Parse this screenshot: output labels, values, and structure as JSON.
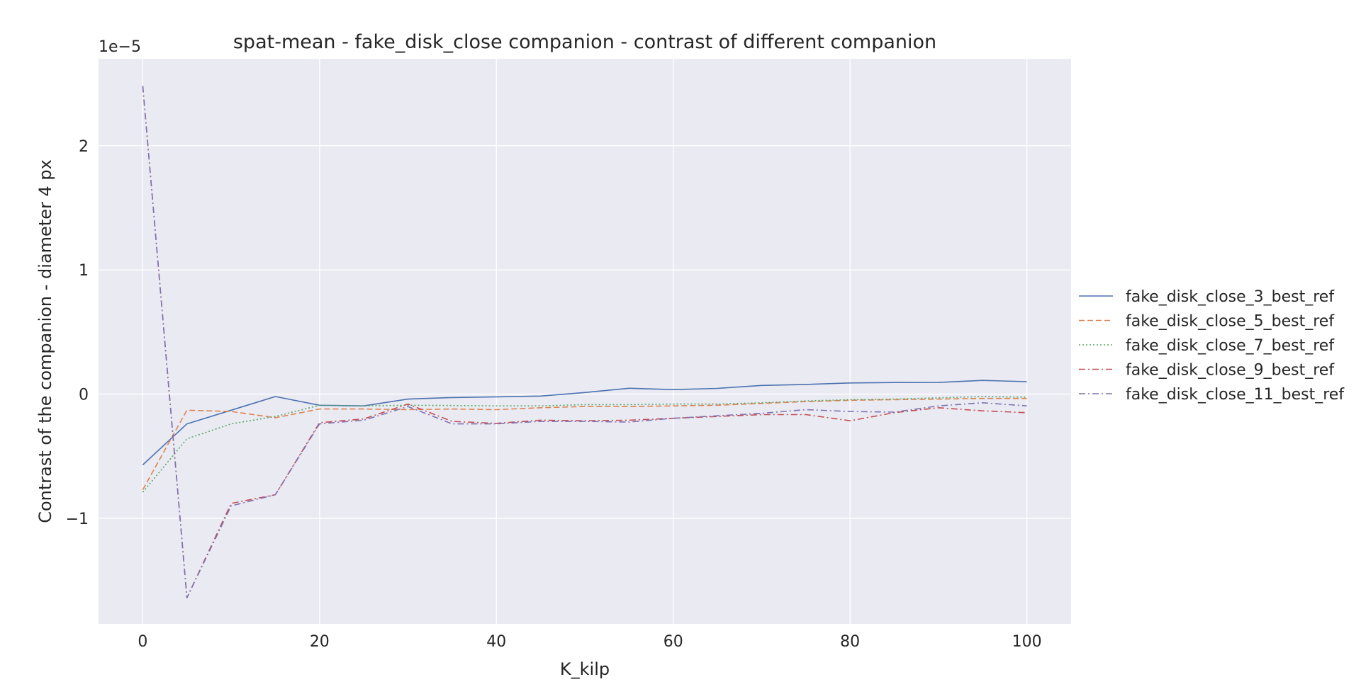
{
  "chart_data": {
    "type": "line",
    "title": "spat-mean - fake_disk_close companion - contrast of different companion",
    "xlabel": "K_kilp",
    "ylabel": "Contrast of the companion - diameter 4 px",
    "y_offset_label": "1e−5",
    "y_scale": 1e-05,
    "xlim": [
      -5,
      105
    ],
    "ylim": [
      -1.85e-05,
      2.7e-05
    ],
    "x_ticks": [
      0,
      20,
      40,
      60,
      80,
      100
    ],
    "x_tick_labels": [
      "0",
      "20",
      "40",
      "60",
      "80",
      "100"
    ],
    "y_ticks": [
      -1e-05,
      0,
      1e-05,
      2e-05
    ],
    "y_tick_labels": [
      "−1",
      "0",
      "1",
      "2"
    ],
    "grid": true,
    "legend_position": "right, outside plot",
    "x": [
      0,
      5,
      10,
      15,
      20,
      25,
      30,
      35,
      40,
      45,
      50,
      55,
      60,
      65,
      70,
      75,
      80,
      85,
      90,
      95,
      100
    ],
    "series": [
      {
        "name": "fake_disk_close_3_best_ref",
        "color": "#4c72b0",
        "dash": "solid",
        "values": [
          -5.7e-06,
          -2.4e-06,
          -1.3e-06,
          -2e-07,
          -9e-07,
          -9.5e-07,
          -4e-07,
          -2.8e-07,
          -2.2e-07,
          -1.6e-07,
          1.3e-07,
          4.7e-07,
          3.6e-07,
          4.6e-07,
          7e-07,
          7.8e-07,
          9e-07,
          9.3e-07,
          9.4e-07,
          1.1e-06,
          1e-06
        ]
      },
      {
        "name": "fake_disk_close_5_best_ref",
        "color": "#dd8452",
        "dash": "dashed",
        "values": [
          -7.7e-06,
          -1.3e-06,
          -1.4e-06,
          -1.9e-06,
          -1.2e-06,
          -1.2e-06,
          -1.25e-06,
          -1.2e-06,
          -1.25e-06,
          -1.1e-06,
          -1e-06,
          -1e-06,
          -9.5e-07,
          -9e-07,
          -7.5e-07,
          -6e-07,
          -5e-07,
          -4.5e-07,
          -4e-07,
          -3.5e-07,
          -3.5e-07
        ]
      },
      {
        "name": "fake_disk_close_7_best_ref",
        "color": "#55a868",
        "dash": "dotted",
        "values": [
          -7.9e-06,
          -3.6e-06,
          -2.4e-06,
          -1.8e-06,
          -9e-07,
          -9.5e-07,
          -9e-07,
          -9.2e-07,
          -9.5e-07,
          -9.5e-07,
          -8.5e-07,
          -8.5e-07,
          -8e-07,
          -8e-07,
          -7e-07,
          -5.5e-07,
          -4.5e-07,
          -4e-07,
          -3e-07,
          -2e-07,
          -2.5e-07
        ]
      },
      {
        "name": "fake_disk_close_9_best_ref",
        "color": "#c44e52",
        "dash": "dashdot",
        "values": [
          2.48e-05,
          -1.64e-05,
          -8.8e-06,
          -8.1e-06,
          -2.3e-06,
          -2e-06,
          -8e-07,
          -2.2e-06,
          -2.35e-06,
          -2.1e-06,
          -2.15e-06,
          -2.1e-06,
          -1.95e-06,
          -1.8e-06,
          -1.65e-06,
          -1.65e-06,
          -2.15e-06,
          -1.5e-06,
          -1.1e-06,
          -1.35e-06,
          -1.5e-06
        ]
      },
      {
        "name": "fake_disk_close_11_best_ref",
        "color": "#8172b3",
        "dash": "dashdot",
        "values": [
          2.48e-05,
          -1.64e-05,
          -9e-06,
          -8.1e-06,
          -2.4e-06,
          -2.1e-06,
          -1e-06,
          -2.4e-06,
          -2.4e-06,
          -2.2e-06,
          -2.2e-06,
          -2.25e-06,
          -1.95e-06,
          -1.75e-06,
          -1.55e-06,
          -1.25e-06,
          -1.4e-06,
          -1.45e-06,
          -9.5e-07,
          -7e-07,
          -9.5e-07
        ]
      }
    ]
  },
  "colors": {
    "plot_background": "#eaeaf2",
    "grid": "#ffffff",
    "text": "#262626"
  }
}
